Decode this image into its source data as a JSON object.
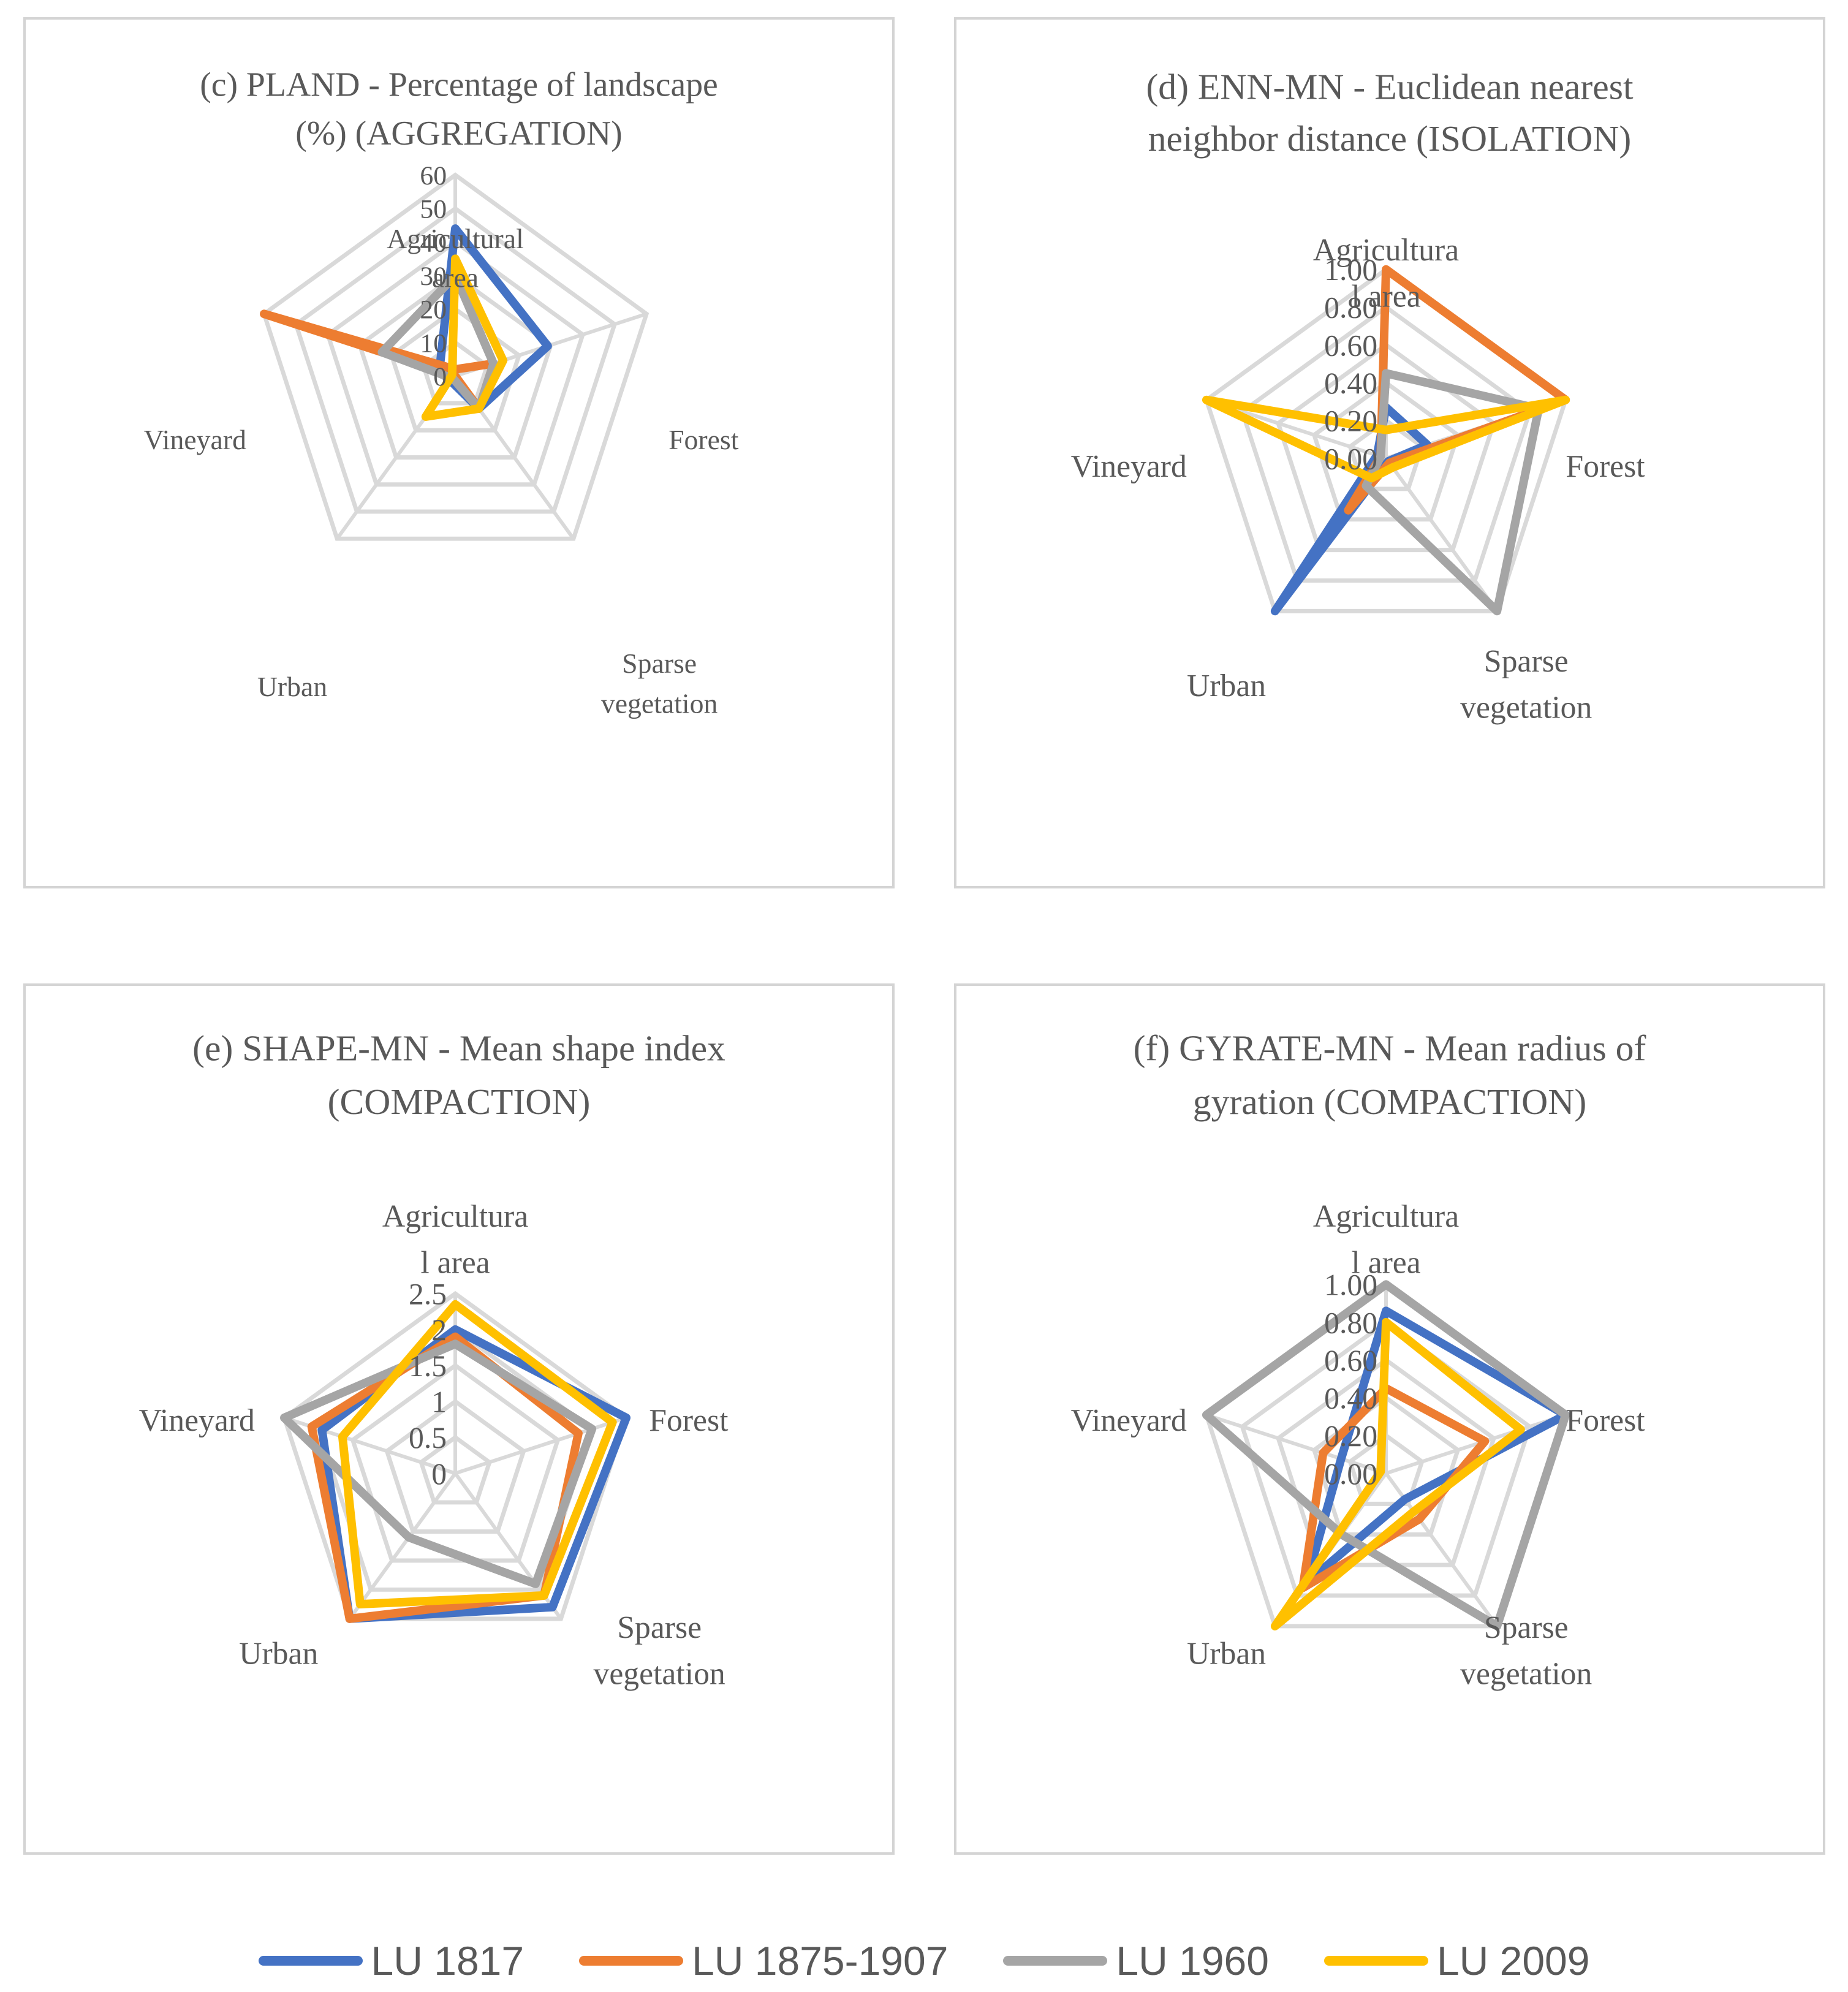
{
  "colors": {
    "LU 1817": "#4472c4",
    "LU 1875-1907": "#ed7d31",
    "LU 1960": "#a5a5a5",
    "LU 2009": "#ffc000"
  },
  "legend": [
    "LU 1817",
    "LU 1875-1907",
    "LU 1960",
    "LU 2009"
  ],
  "chart_data": [
    {
      "type": "radar",
      "title_lines": [
        "(c) PLAND - Percentage of landscape",
        "(%) (AGGREGATION)"
      ],
      "axes": [
        {
          "lines": [
            "Agricultural",
            "area"
          ]
        },
        {
          "lines": [
            "Forest"
          ]
        },
        {
          "lines": [
            "Sparse",
            "vegetation"
          ]
        },
        {
          "lines": [
            "Urban"
          ]
        },
        {
          "lines": [
            "Vineyard"
          ]
        }
      ],
      "rmax": 60,
      "ticks": [
        "0",
        "10",
        "20",
        "30",
        "40",
        "50",
        "60"
      ],
      "series": [
        {
          "name": "LU 1817",
          "values": [
            44,
            29,
            12,
            2,
            5
          ]
        },
        {
          "name": "LU 1875-1907",
          "values": [
            2,
            12,
            12,
            0,
            60
          ]
        },
        {
          "name": "LU 1960",
          "values": [
            30,
            12,
            12,
            1,
            23
          ]
        },
        {
          "name": "LU 2009",
          "values": [
            35,
            15,
            12,
            15,
            1
          ]
        }
      ]
    },
    {
      "type": "radar",
      "title_lines": [
        "(d) ENN-MN - Euclidean nearest",
        "neighbor distance (ISOLATION)"
      ],
      "axes": [
        {
          "lines": [
            "Agricultura",
            "l area"
          ]
        },
        {
          "lines": [
            "Forest"
          ]
        },
        {
          "lines": [
            "Sparse",
            "vegetation"
          ]
        },
        {
          "lines": [
            "Urban"
          ]
        },
        {
          "lines": [
            "Vineyard"
          ]
        }
      ],
      "rmax": 1.0,
      "ticks": [
        "0.00",
        "0.20",
        "0.40",
        "0.60",
        "0.80",
        "1.00"
      ],
      "series": [
        {
          "name": "LU 1817",
          "values": [
            0.27,
            0.23,
            0.02,
            1.0,
            0.05
          ]
        },
        {
          "name": "LU 1875-1907",
          "values": [
            1.0,
            1.0,
            0.03,
            0.34,
            0.03
          ]
        },
        {
          "name": "LU 1960",
          "values": [
            0.45,
            0.85,
            1.0,
            0.18,
            0.03
          ]
        },
        {
          "name": "LU 2009",
          "values": [
            0.15,
            1.0,
            0.06,
            0.13,
            1.0
          ]
        }
      ]
    },
    {
      "type": "radar",
      "title_lines": [
        "(e) SHAPE-MN - Mean shape index",
        "(COMPACTION)"
      ],
      "axes": [
        {
          "lines": [
            "Agricultura",
            "l area"
          ]
        },
        {
          "lines": [
            "Forest"
          ]
        },
        {
          "lines": [
            "Sparse",
            "vegetation"
          ]
        },
        {
          "lines": [
            "Urban"
          ]
        },
        {
          "lines": [
            "Vineyard"
          ]
        }
      ],
      "rmax": 2.5,
      "ticks": [
        "0",
        "0.5",
        "1",
        "1.5",
        "2",
        "2.5"
      ],
      "series": [
        {
          "name": "LU 1817",
          "values": [
            2.0,
            2.5,
            2.3,
            2.5,
            1.95
          ]
        },
        {
          "name": "LU 1875-1907",
          "values": [
            1.9,
            1.8,
            2.1,
            2.5,
            2.1
          ]
        },
        {
          "name": "LU 1960",
          "values": [
            1.8,
            2.0,
            1.9,
            1.1,
            2.5
          ]
        },
        {
          "name": "LU 2009",
          "values": [
            2.35,
            2.3,
            2.1,
            2.25,
            1.65
          ]
        }
      ]
    },
    {
      "type": "radar",
      "title_lines": [
        "(f) GYRATE-MN - Mean radius of",
        "gyration (COMPACTION)"
      ],
      "axes": [
        {
          "lines": [
            "Agricultura",
            "l area"
          ]
        },
        {
          "lines": [
            "Forest"
          ]
        },
        {
          "lines": [
            "Sparse",
            "vegetation"
          ]
        },
        {
          "lines": [
            "Urban"
          ]
        },
        {
          "lines": [
            "Vineyard"
          ]
        }
      ],
      "rmax": 1.0,
      "ticks": [
        "0.00",
        "0.20",
        "0.40",
        "0.60",
        "0.80",
        "1.00"
      ],
      "series": [
        {
          "name": "LU 1817",
          "values": [
            0.86,
            1.0,
            0.17,
            0.72,
            0.25
          ]
        },
        {
          "name": "LU 1875-1907",
          "values": [
            0.45,
            0.55,
            0.3,
            0.75,
            0.35
          ]
        },
        {
          "name": "LU 1960",
          "values": [
            1.0,
            1.0,
            1.0,
            0.4,
            1.0
          ]
        },
        {
          "name": "LU 2009",
          "values": [
            0.8,
            0.75,
            0.25,
            1.0,
            0.03
          ]
        }
      ]
    }
  ]
}
